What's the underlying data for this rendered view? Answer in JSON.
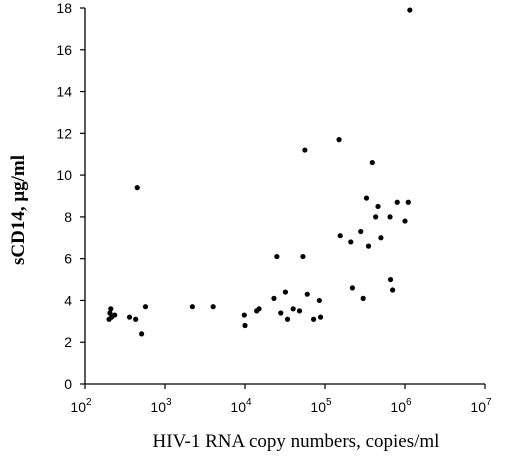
{
  "chart_data": {
    "type": "scatter",
    "title": "",
    "xlabel": "HIV-1 RNA copy numbers, copies/ml",
    "ylabel": "sCD14, μg/ml",
    "x_scale": "log",
    "xlim": [
      100,
      10000000
    ],
    "ylim": [
      0,
      18
    ],
    "x_ticks": [
      {
        "value": 100,
        "base": "10",
        "exp": "2"
      },
      {
        "value": 1000,
        "base": "10",
        "exp": "3"
      },
      {
        "value": 10000,
        "base": "10",
        "exp": "4"
      },
      {
        "value": 100000,
        "base": "10",
        "exp": "5"
      },
      {
        "value": 1000000,
        "base": "10",
        "exp": "6"
      },
      {
        "value": 10000000,
        "base": "10",
        "exp": "7"
      }
    ],
    "y_ticks": [
      "0",
      "2",
      "4",
      "6",
      "8",
      "10",
      "12",
      "14",
      "16",
      "18"
    ],
    "grid": false,
    "legend": "none",
    "marker_color": "#000000",
    "points": [
      {
        "x": 200,
        "y": 3.1
      },
      {
        "x": 205,
        "y": 3.4
      },
      {
        "x": 210,
        "y": 3.6
      },
      {
        "x": 215,
        "y": 3.2
      },
      {
        "x": 235,
        "y": 3.3
      },
      {
        "x": 360,
        "y": 3.2
      },
      {
        "x": 430,
        "y": 3.1
      },
      {
        "x": 450,
        "y": 9.4
      },
      {
        "x": 510,
        "y": 2.4
      },
      {
        "x": 570,
        "y": 3.7
      },
      {
        "x": 2200,
        "y": 3.7
      },
      {
        "x": 4000,
        "y": 3.7
      },
      {
        "x": 9800,
        "y": 3.3
      },
      {
        "x": 10000,
        "y": 2.8
      },
      {
        "x": 14000,
        "y": 3.5
      },
      {
        "x": 15000,
        "y": 3.6
      },
      {
        "x": 23000,
        "y": 4.1
      },
      {
        "x": 25000,
        "y": 6.1
      },
      {
        "x": 28000,
        "y": 3.4
      },
      {
        "x": 32000,
        "y": 4.4
      },
      {
        "x": 34000,
        "y": 3.1
      },
      {
        "x": 40000,
        "y": 3.6
      },
      {
        "x": 48000,
        "y": 3.5
      },
      {
        "x": 53000,
        "y": 6.1
      },
      {
        "x": 56000,
        "y": 11.2
      },
      {
        "x": 60000,
        "y": 4.3
      },
      {
        "x": 72000,
        "y": 3.1
      },
      {
        "x": 85000,
        "y": 4.0
      },
      {
        "x": 88000,
        "y": 3.2
      },
      {
        "x": 150000,
        "y": 11.7
      },
      {
        "x": 155000,
        "y": 7.1
      },
      {
        "x": 210000,
        "y": 6.8
      },
      {
        "x": 220000,
        "y": 4.6
      },
      {
        "x": 280000,
        "y": 7.3
      },
      {
        "x": 300000,
        "y": 4.1
      },
      {
        "x": 330000,
        "y": 8.9
      },
      {
        "x": 350000,
        "y": 6.6
      },
      {
        "x": 390000,
        "y": 10.6
      },
      {
        "x": 430000,
        "y": 8.0
      },
      {
        "x": 460000,
        "y": 8.5
      },
      {
        "x": 500000,
        "y": 7.0
      },
      {
        "x": 650000,
        "y": 8.0
      },
      {
        "x": 660000,
        "y": 5.0
      },
      {
        "x": 700000,
        "y": 4.5
      },
      {
        "x": 800000,
        "y": 8.7
      },
      {
        "x": 1000000,
        "y": 7.8
      },
      {
        "x": 1100000,
        "y": 8.7
      },
      {
        "x": 1150000,
        "y": 17.9
      }
    ]
  }
}
